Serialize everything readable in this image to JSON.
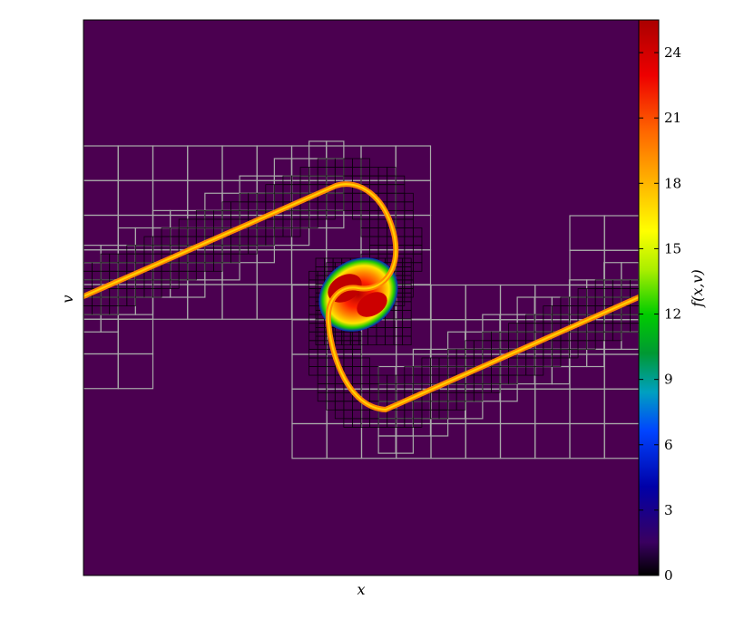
{
  "chart_data": {
    "type": "heatmap",
    "title": "",
    "xlabel": "x",
    "ylabel": "v",
    "colorbar": {
      "label": "f(x,v)",
      "range": [
        0,
        25.5
      ],
      "ticks": [
        0,
        3,
        6,
        9,
        12,
        15,
        18,
        21,
        24
      ],
      "tick_labels": [
        "0",
        "3",
        "6",
        "9",
        "12",
        "15",
        "18",
        "21",
        "24"
      ],
      "colormap": "spectral (dark purple → blue → green → yellow → orange → red)"
    },
    "description_content": {
      "background_value": 0,
      "overlay": "adaptive refinement grid (gray quad-tree cells, finer black cells along the filament)",
      "structure": "S-shaped filament crossing the phase space with a rolled-up vortex in the centre",
      "core_peak_value": 24,
      "filament_value": 18
    },
    "grid_on": false,
    "legend": null
  },
  "colors": {
    "background": "#4b0050",
    "grid_coarse": "#a9a9a9",
    "grid_fine": "#000000",
    "filament": "#f5a623"
  }
}
